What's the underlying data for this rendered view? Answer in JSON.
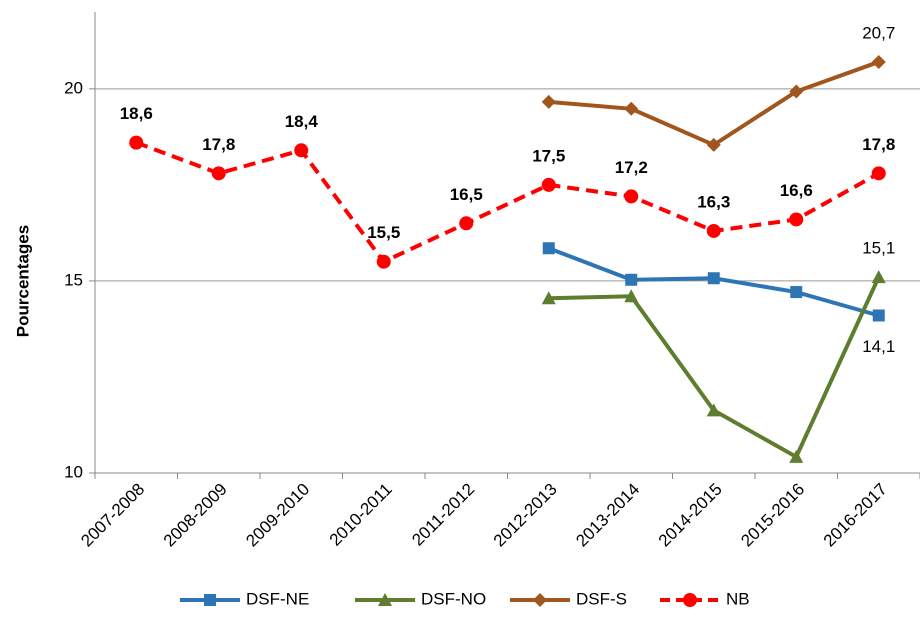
{
  "chart_data": {
    "type": "line",
    "y_label": "Pourcentages",
    "categories": [
      "2007-2008",
      "2008-2009",
      "2009-2010",
      "2010-2011",
      "2011-2012",
      "2012-2013",
      "2013-2014",
      "2014-2015",
      "2015-2016",
      "2016-2017"
    ],
    "series": [
      {
        "name": "DSF-NE",
        "color": "#2e75b6",
        "marker": "square",
        "dashed": false,
        "values": [
          null,
          null,
          null,
          null,
          null,
          15.85,
          15.03,
          15.07,
          14.71,
          14.1
        ],
        "value_labels": [
          null,
          null,
          null,
          null,
          null,
          null,
          null,
          null,
          null,
          "14,1"
        ]
      },
      {
        "name": "DSF-NO",
        "color": "#5e7d2f",
        "marker": "triangle",
        "dashed": false,
        "values": [
          null,
          null,
          null,
          null,
          null,
          14.55,
          14.6,
          11.63,
          10.42,
          15.1
        ],
        "value_labels": [
          null,
          null,
          null,
          null,
          null,
          null,
          null,
          null,
          null,
          "15,1"
        ]
      },
      {
        "name": "DSF-S",
        "color": "#a0561c",
        "marker": "diamond",
        "dashed": false,
        "values": [
          null,
          null,
          null,
          null,
          null,
          19.66,
          19.48,
          18.54,
          19.93,
          20.7
        ],
        "value_labels": [
          null,
          null,
          null,
          null,
          null,
          null,
          null,
          null,
          null,
          "20,7"
        ]
      },
      {
        "name": "NB",
        "color": "#ff0000",
        "marker": "circle",
        "dashed": true,
        "values": [
          18.6,
          17.8,
          18.4,
          15.5,
          16.5,
          17.5,
          17.2,
          16.3,
          16.6,
          17.8
        ],
        "value_labels": [
          "18,6",
          "17,8",
          "18,4",
          "15,5",
          "16,5",
          "17,5",
          "17,2",
          "16,3",
          "16,6",
          "17,8"
        ]
      }
    ],
    "ylim": [
      10,
      22
    ],
    "yticks": [
      10,
      15,
      20
    ],
    "grid": true,
    "legend": "bottom"
  }
}
